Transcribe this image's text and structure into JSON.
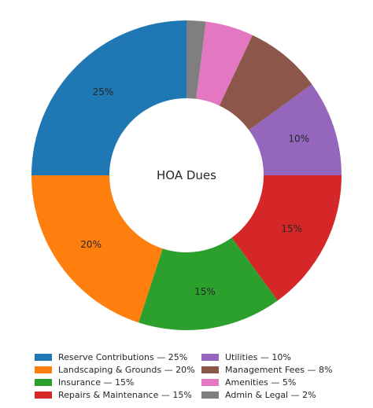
{
  "chart_data": {
    "type": "pie",
    "title": "HOA Dues",
    "donut": true,
    "start": "top, counterclockwise",
    "slices": [
      {
        "label": "Reserve Contributions",
        "value": 25,
        "color": "#1f77b4",
        "data_label": "25%",
        "legend_label": "Reserve Contributions — 25%"
      },
      {
        "label": "Landscaping & Grounds",
        "value": 20,
        "color": "#ff7f0e",
        "data_label": "20%",
        "legend_label": "Landscaping & Grounds — 20%"
      },
      {
        "label": "Insurance",
        "value": 15,
        "color": "#2ca02c",
        "data_label": "15%",
        "legend_label": "Insurance — 15%"
      },
      {
        "label": "Repairs & Maintenance",
        "value": 15,
        "color": "#d62728",
        "data_label": "15%",
        "legend_label": "Repairs & Maintenance — 15%"
      },
      {
        "label": "Utilities",
        "value": 10,
        "color": "#9467bd",
        "data_label": "10%",
        "legend_label": "Utilities — 10%"
      },
      {
        "label": "Management Fees",
        "value": 8,
        "color": "#8c564b",
        "data_label": "",
        "legend_label": "Management Fees — 8%"
      },
      {
        "label": "Amenities",
        "value": 5,
        "color": "#e377c2",
        "data_label": "",
        "legend_label": "Amenities — 5%"
      },
      {
        "label": "Admin & Legal",
        "value": 2,
        "color": "#7f7f7f",
        "data_label": "",
        "legend_label": "Admin & Legal — 2%"
      }
    ],
    "legend_placement": "bottom"
  }
}
